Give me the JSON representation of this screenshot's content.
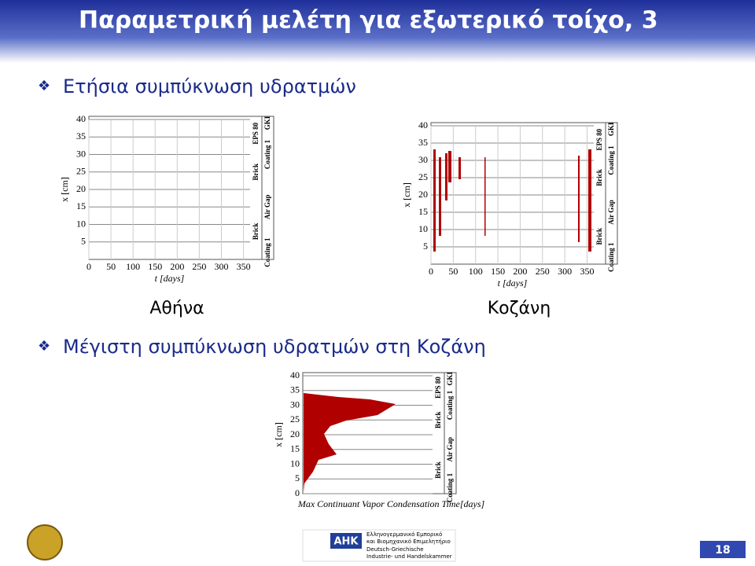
{
  "header": {
    "title": "Παραμετρική μελέτη για εξωτερικό τοίχο, 3"
  },
  "bullets": [
    "Ετήσια συμπύκνωση υδρατμών",
    "Μέγιστη συμπύκνωση υδρατμών στη Κοζάνη"
  ],
  "figures": [
    {
      "caption": "Αθήνα",
      "x_label": "t [days]",
      "y_label": "x [cm]",
      "xticks": [
        0,
        50,
        100,
        150,
        200,
        250,
        300,
        350
      ],
      "yticks": [
        5,
        10,
        15,
        20,
        25,
        30,
        35,
        40
      ],
      "layers_inner": [
        "Brick",
        "Brick",
        "EPS 80"
      ],
      "layers_outer": [
        "Coating 1",
        "Air Gap",
        "Coating 1",
        "GKI"
      ]
    },
    {
      "caption": "Κοζάνη",
      "x_label": "t [days]",
      "y_label": "x [cm]",
      "xticks": [
        0,
        50,
        100,
        150,
        200,
        250,
        300,
        350
      ],
      "yticks": [
        5,
        10,
        15,
        20,
        25,
        30,
        35,
        40
      ],
      "layers_inner": [
        "Brick",
        "Brick",
        "EPS 80"
      ],
      "layers_outer": [
        "Coating 1",
        "Air Gap",
        "Coating 1",
        "GKI"
      ]
    },
    {
      "x_label": "Max Continuant Vapor Condensation Time[days]",
      "y_label": "x [cm]",
      "yticks": [
        0,
        5,
        10,
        15,
        20,
        25,
        30,
        35,
        40
      ],
      "layers_inner": [
        "Brick",
        "Brick",
        "EPS 80"
      ],
      "layers_outer": [
        "Coating 1",
        "Air Gap",
        "Coating 1",
        "GKI"
      ]
    }
  ],
  "footer": {
    "logo_abbr": "AHK",
    "logo_text": [
      "Ελληνογερμανικό Εμπορικό",
      "και Βιομηχανικό Επιμελητήριο",
      "Deutsch-Griechische",
      "Industrie- und Handelskammer"
    ],
    "page": "18"
  }
}
